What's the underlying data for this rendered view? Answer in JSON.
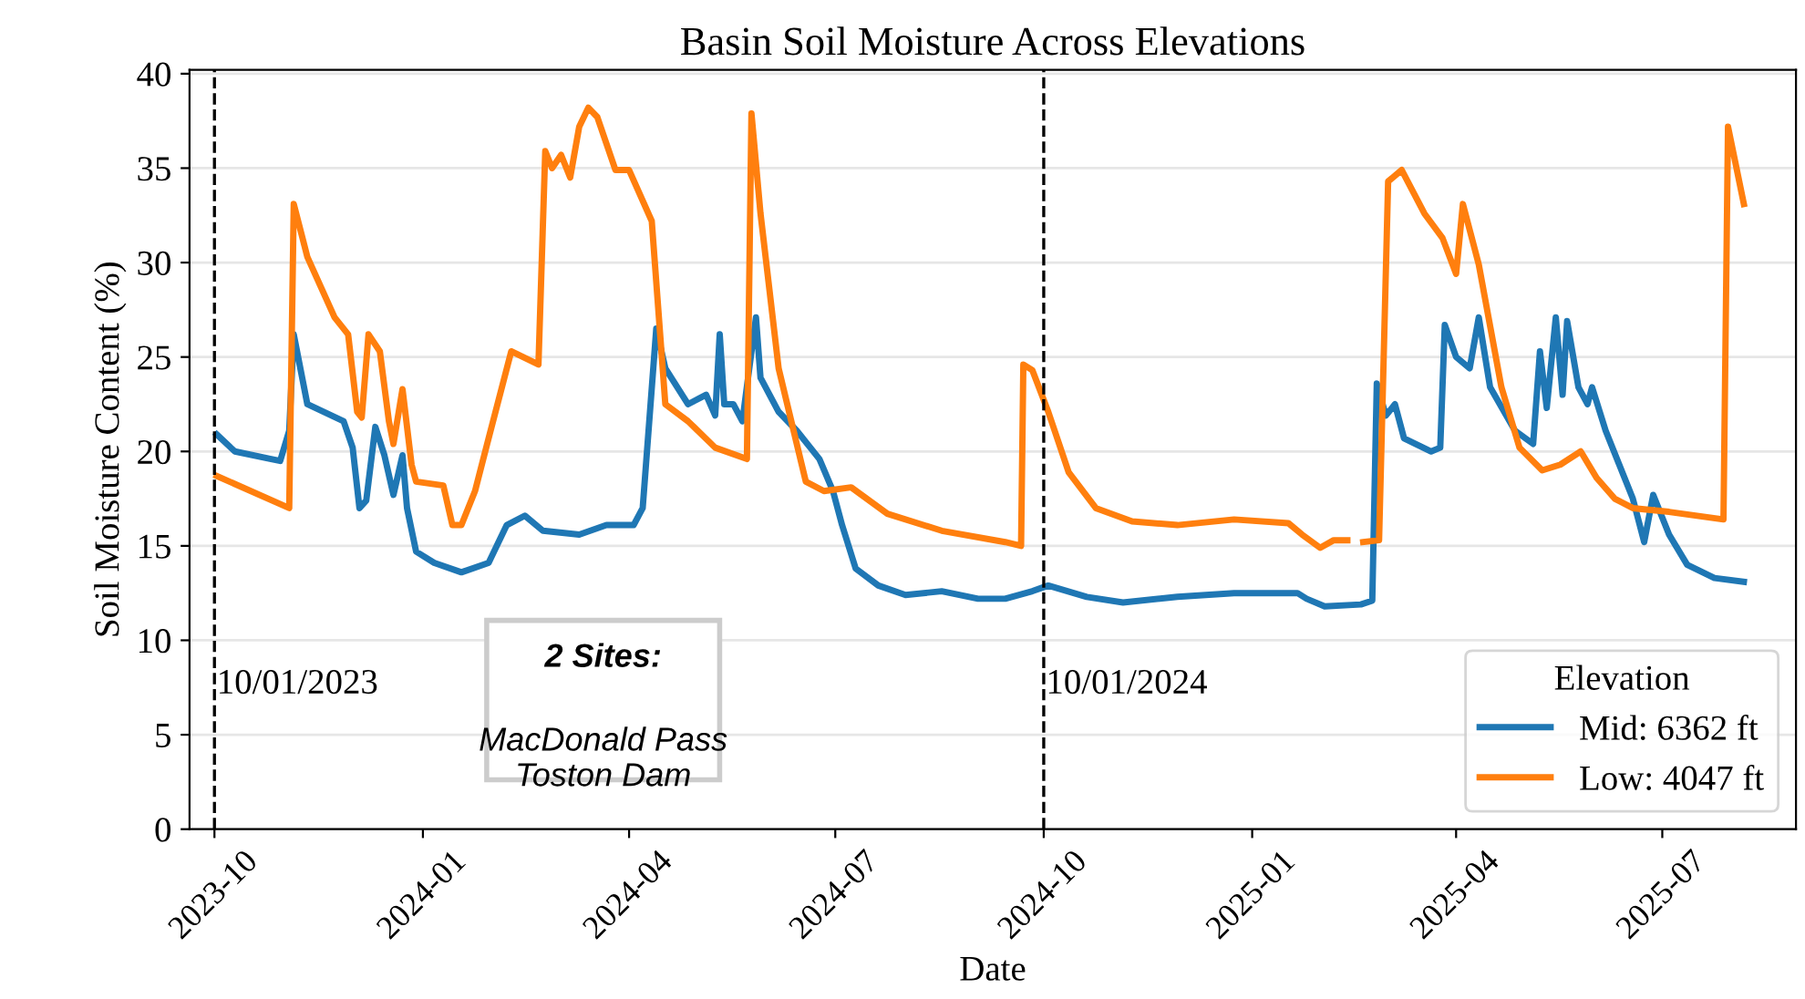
{
  "chart_data": {
    "type": "line",
    "title": "Basin Soil Moisture Across Elevations",
    "xlabel": "Date",
    "ylabel": "Soil Moisture Content (%)",
    "legend_title": "Elevation",
    "legend": "bottom right",
    "grid": "y",
    "line_style": "solid",
    "marker": "none",
    "xlim": [
      "2023-09-20",
      "2025-08-29"
    ],
    "ylim": [
      0,
      40.2
    ],
    "xticks": [
      "2023-10",
      "2024-01",
      "2024-04",
      "2024-07",
      "2024-10",
      "2025-01",
      "2025-04",
      "2025-07"
    ],
    "yticks": [
      0,
      5,
      10,
      15,
      20,
      25,
      30,
      35,
      40
    ],
    "ref_lines": [
      {
        "axis": "x",
        "value": "2023-10-01",
        "label": "10/01/2023",
        "color": "#000000",
        "line_style": "dashed"
      },
      {
        "axis": "x",
        "value": "2024-10-01",
        "label": "10/01/2024",
        "color": "#000000",
        "line_style": "dashed"
      }
    ],
    "annotations": [
      "2 Sites:",
      "MacDonald Pass\nToston Dam"
    ],
    "series": [
      {
        "name": "Mid: 6362 ft",
        "color": "#1f77b4",
        "x": [
          "2023-10-02",
          "2023-10-10",
          "2023-10-26",
          "2023-10-30",
          "2023-11-03",
          "2023-11-05",
          "2023-11-11",
          "2023-11-27",
          "2023-12-01",
          "2023-12-04",
          "2023-12-07",
          "2023-12-11",
          "2023-12-15",
          "2023-12-19",
          "2023-12-23",
          "2023-12-25",
          "2023-12-29",
          "2024-01-06",
          "2024-01-18",
          "2024-01-30",
          "2024-02-07",
          "2024-02-15",
          "2024-02-23",
          "2024-03-10",
          "2024-03-22",
          "2024-04-03",
          "2024-04-07",
          "2024-04-13",
          "2024-04-17",
          "2024-04-27",
          "2024-05-05",
          "2024-05-09",
          "2024-05-11",
          "2024-05-13",
          "2024-05-17",
          "2024-05-21",
          "2024-05-27",
          "2024-05-29",
          "2024-06-06",
          "2024-06-14",
          "2024-06-20",
          "2024-06-24",
          "2024-06-30",
          "2024-07-04",
          "2024-07-10",
          "2024-07-20",
          "2024-08-01",
          "2024-08-17",
          "2024-09-02",
          "2024-09-14",
          "2024-09-26",
          "2024-10-03",
          "2024-10-20",
          "2024-11-05",
          "2024-11-29",
          "2024-12-24",
          "2025-01-21",
          "2025-01-25",
          "2025-02-02",
          "2025-02-18",
          "2025-02-23",
          "2025-02-25",
          "2025-03-01",
          "2025-03-05",
          "2025-03-09",
          "2025-03-21",
          "2025-03-25",
          "2025-03-27",
          "2025-04-01",
          "2025-04-07",
          "2025-04-11",
          "2025-04-16",
          "2025-04-27",
          "2025-05-05",
          "2025-05-08",
          "2025-05-11",
          "2025-05-15",
          "2025-05-18",
          "2025-05-20",
          "2025-05-25",
          "2025-05-29",
          "2025-05-31",
          "2025-06-06",
          "2025-06-12",
          "2025-06-18",
          "2025-06-23",
          "2025-06-27",
          "2025-07-04",
          "2025-07-12",
          "2025-07-24",
          "2025-08-06"
        ],
        "values": [
          20.9,
          20.0,
          19.6,
          19.5,
          21.1,
          26.2,
          22.5,
          21.6,
          20.2,
          17.0,
          17.4,
          21.3,
          19.8,
          17.7,
          19.8,
          17.0,
          14.7,
          14.1,
          13.6,
          14.1,
          16.1,
          16.6,
          15.8,
          15.6,
          16.1,
          16.1,
          17.0,
          26.5,
          24.4,
          22.5,
          23.0,
          21.9,
          26.2,
          22.5,
          22.5,
          21.6,
          27.1,
          23.9,
          22.1,
          21.1,
          20.2,
          19.6,
          17.9,
          16.1,
          13.8,
          12.9,
          12.4,
          12.6,
          12.2,
          12.2,
          12.6,
          12.9,
          12.3,
          12.0,
          12.3,
          12.5,
          12.5,
          12.2,
          11.8,
          11.9,
          12.1,
          23.6,
          21.9,
          22.5,
          20.7,
          20.0,
          20.2,
          26.7,
          25.0,
          24.4,
          27.1,
          23.4,
          21.1,
          20.4,
          25.3,
          22.3,
          27.1,
          23.0,
          26.9,
          23.4,
          22.5,
          23.4,
          21.1,
          19.3,
          17.5,
          15.2,
          17.7,
          15.6,
          14.0,
          13.3,
          13.1
        ]
      },
      {
        "name": "Low: 4047 ft",
        "color": "#ff7f0e",
        "x": [
          "2023-10-02",
          "2023-11-03",
          "2023-11-05",
          "2023-11-11",
          "2023-11-23",
          "2023-11-29",
          "2023-12-03",
          "2023-12-05",
          "2023-12-08",
          "2023-12-13",
          "2023-12-17",
          "2023-12-19",
          "2023-12-23",
          "2023-12-27",
          "2023-12-29",
          "2024-01-10",
          "2024-01-14",
          "2024-01-18",
          "2024-01-24",
          "2024-01-30",
          "2024-02-09",
          "2024-02-21",
          "2024-02-24",
          "2024-02-27",
          "2024-03-02",
          "2024-03-06",
          "2024-03-10",
          "2024-03-14",
          "2024-03-18",
          "2024-03-26",
          "2024-04-01",
          "2024-04-11",
          "2024-04-17",
          "2024-04-27",
          "2024-05-09",
          "2024-05-23",
          "2024-05-25",
          "2024-05-29",
          "2024-06-06",
          "2024-06-18",
          "2024-06-26",
          "2024-07-08",
          "2024-07-24",
          "2024-08-17",
          "2024-09-14",
          "2024-09-21",
          "2024-09-22",
          "2024-09-26",
          "2024-10-03",
          "2024-10-12",
          "2024-10-24",
          "2024-11-09",
          "2024-11-29",
          "2024-12-24",
          "2025-01-17",
          "2025-01-23",
          "2025-01-31",
          "2025-02-06",
          "2025-02-12",
          "2025-02-16",
          "2025-02-19",
          "2025-02-26",
          "2025-03-02",
          "2025-03-08",
          "2025-03-18",
          "2025-03-26",
          "2025-04-01",
          "2025-04-04",
          "2025-04-11",
          "2025-04-21",
          "2025-04-29",
          "2025-05-09",
          "2025-05-17",
          "2025-05-26",
          "2025-06-02",
          "2025-06-10",
          "2025-06-18",
          "2025-07-04",
          "2025-07-28",
          "2025-07-30",
          "2025-08-06"
        ],
        "values": [
          18.7,
          17.0,
          33.1,
          30.3,
          27.1,
          26.2,
          22.1,
          21.8,
          26.2,
          25.3,
          21.6,
          20.4,
          23.3,
          19.3,
          18.4,
          18.2,
          16.1,
          16.1,
          17.9,
          20.7,
          25.3,
          24.6,
          35.9,
          35.0,
          35.7,
          34.5,
          37.2,
          38.2,
          37.7,
          34.9,
          34.9,
          32.2,
          22.5,
          21.6,
          20.2,
          19.6,
          37.9,
          32.6,
          24.4,
          18.4,
          17.9,
          18.1,
          16.7,
          15.8,
          15.2,
          15.0,
          24.6,
          24.3,
          22.1,
          18.9,
          17.0,
          16.3,
          16.1,
          16.4,
          16.2,
          15.6,
          14.9,
          15.3,
          15.3,
          null,
          15.2,
          15.3,
          34.3,
          34.9,
          32.6,
          31.3,
          29.4,
          33.1,
          29.9,
          23.4,
          20.2,
          19.0,
          19.3,
          20.0,
          18.6,
          17.5,
          17.0,
          16.8,
          16.4,
          37.2,
          33.1
        ]
      }
    ]
  }
}
